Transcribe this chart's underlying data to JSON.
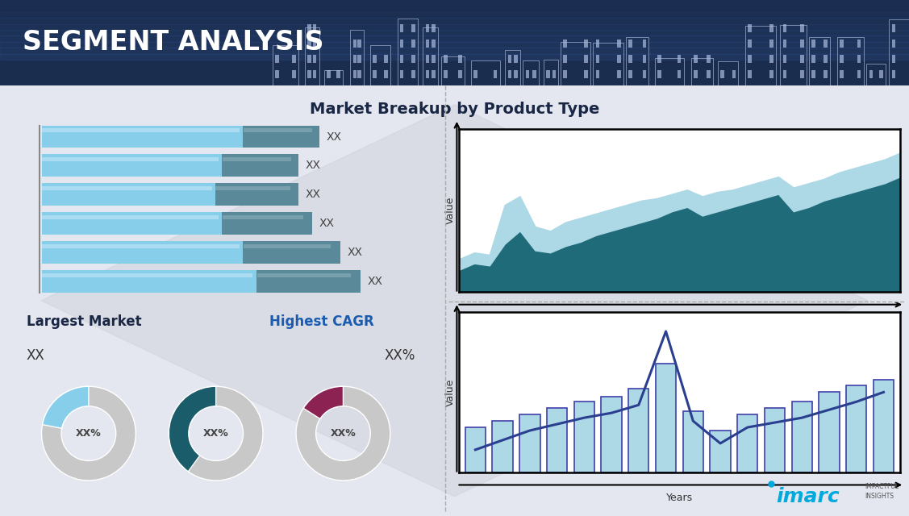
{
  "title": "Market Breakup by Product Type",
  "header_title": "SEGMENT ANALYSIS",
  "header_bg": "#1b2d4f",
  "main_bg": "#e4e7ef",
  "bar_labels": [
    "XX",
    "XX",
    "XX",
    "XX",
    "XX",
    "XX"
  ],
  "bar_light": [
    0.58,
    0.52,
    0.5,
    0.52,
    0.58,
    0.62
  ],
  "bar_dark": [
    0.22,
    0.22,
    0.24,
    0.26,
    0.28,
    0.3
  ],
  "bar_light_color": "#87CEEB",
  "bar_dark_color": "#5a8a9a",
  "area_x": [
    0,
    1,
    2,
    3,
    4,
    5,
    6,
    7,
    8,
    9,
    10,
    11,
    12,
    13,
    14,
    15,
    16,
    17,
    18,
    19,
    20,
    21,
    22,
    23,
    24,
    25,
    26,
    27,
    28,
    29
  ],
  "area_dark": [
    0.1,
    0.13,
    0.12,
    0.22,
    0.28,
    0.19,
    0.18,
    0.21,
    0.23,
    0.26,
    0.28,
    0.3,
    0.32,
    0.34,
    0.37,
    0.39,
    0.35,
    0.37,
    0.39,
    0.41,
    0.43,
    0.45,
    0.37,
    0.39,
    0.42,
    0.44,
    0.46,
    0.48,
    0.5,
    0.53
  ],
  "area_light": [
    0.15,
    0.18,
    0.17,
    0.4,
    0.44,
    0.3,
    0.28,
    0.32,
    0.34,
    0.36,
    0.38,
    0.4,
    0.42,
    0.43,
    0.45,
    0.47,
    0.44,
    0.46,
    0.47,
    0.49,
    0.51,
    0.53,
    0.48,
    0.5,
    0.52,
    0.55,
    0.57,
    0.59,
    0.61,
    0.64
  ],
  "area_dark_color": "#1f6b7a",
  "area_light_color": "#add8e6",
  "bar2_values": [
    0.28,
    0.32,
    0.36,
    0.4,
    0.44,
    0.47,
    0.52,
    0.68,
    0.38,
    0.26,
    0.36,
    0.4,
    0.44,
    0.5,
    0.54,
    0.58
  ],
  "bar2_color": "#add8e6",
  "bar2_edge_color": "#4040aa",
  "line2": [
    0.14,
    0.2,
    0.26,
    0.3,
    0.34,
    0.37,
    0.42,
    0.88,
    0.32,
    0.18,
    0.28,
    0.31,
    0.34,
    0.39,
    0.44,
    0.5
  ],
  "line2_color": "#2a3f8f",
  "donut1_pct": 0.22,
  "donut1_color": "#87CEEB",
  "donut2_pct": 0.4,
  "donut2_color": "#1a5c6a",
  "donut3_pct": 0.16,
  "donut3_color": "#8B2252",
  "donut_bg": "#c8c8c8",
  "donut_label": "XX%",
  "largest_market_label": "Largest Market",
  "largest_market_val": "XX",
  "highest_cagr_label": "Highest CAGR",
  "highest_cagr_val": "XX%",
  "ylabel": "Value",
  "xlabel": "Years",
  "title_color": "#1a2744",
  "imarc_color": "#00aadd",
  "imarc_text": "imarc",
  "imarc_sub": "IMPACTFUL\nINSIGHTS"
}
